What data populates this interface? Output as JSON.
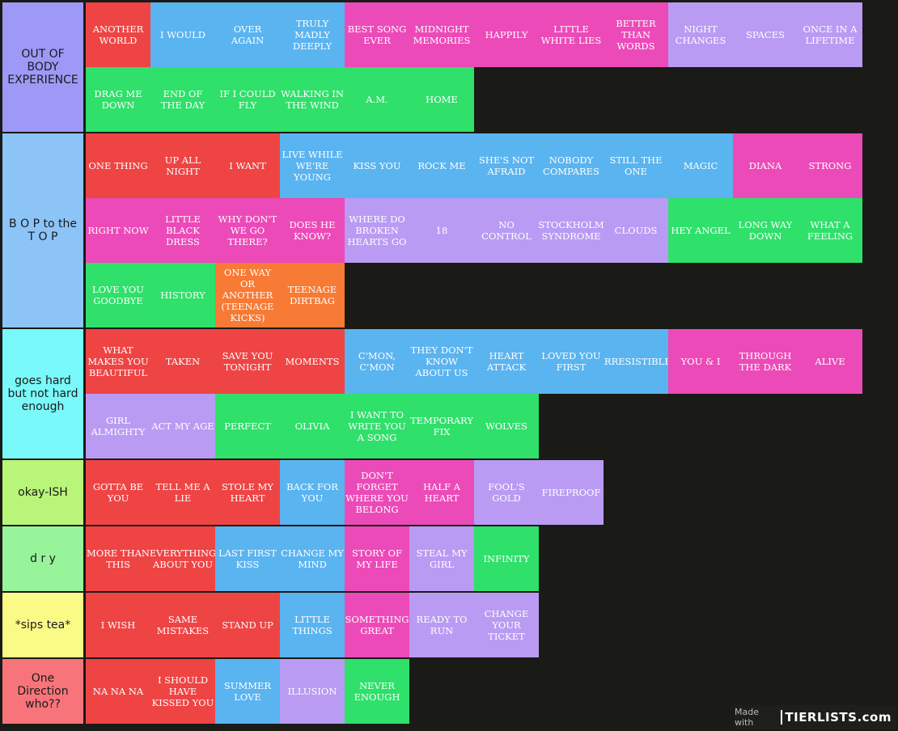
{
  "colors": {
    "red": "#ef4444",
    "blue": "#5ab4f0",
    "pink": "#ec4ab8",
    "purple": "#b99bf3",
    "green": "#2fe06a",
    "orange": "#f77a35",
    "background": "#1a1a17"
  },
  "tiers": [
    {
      "label": "OUT OF BODY EXPERIENCE",
      "color": "#9e99f7",
      "items": [
        {
          "text": "ANOTHER WORLD",
          "color": "red"
        },
        {
          "text": "I WOULD",
          "color": "blue"
        },
        {
          "text": "OVER AGAIN",
          "color": "blue"
        },
        {
          "text": "TRULY MADLY DEEPLY",
          "color": "blue"
        },
        {
          "text": "BEST SONG EVER",
          "color": "pink"
        },
        {
          "text": "MIDNIGHT MEMORIES",
          "color": "pink"
        },
        {
          "text": "HAPPILY",
          "color": "pink"
        },
        {
          "text": "LITTLE WHITE LIES",
          "color": "pink"
        },
        {
          "text": "BETTER THAN WORDS",
          "color": "pink"
        },
        {
          "text": "NIGHT CHANGES",
          "color": "purple"
        },
        {
          "text": "SPACES",
          "color": "purple"
        },
        {
          "text": "ONCE IN A LIFETIME",
          "color": "purple"
        },
        {
          "text": "DRAG ME DOWN",
          "color": "green"
        },
        {
          "text": "END OF THE DAY",
          "color": "green"
        },
        {
          "text": "IF I COULD FLY",
          "color": "green"
        },
        {
          "text": "WALKING IN THE WIND",
          "color": "green"
        },
        {
          "text": "A.M.",
          "color": "green"
        },
        {
          "text": "HOME",
          "color": "green"
        }
      ]
    },
    {
      "label": "B O P to the T O P",
      "color": "#8cc4f8",
      "items": [
        {
          "text": "ONE THING",
          "color": "red"
        },
        {
          "text": "UP ALL NIGHT",
          "color": "red"
        },
        {
          "text": "I WANT",
          "color": "red"
        },
        {
          "text": "LIVE WHILE WE'RE YOUNG",
          "color": "blue"
        },
        {
          "text": "KISS YOU",
          "color": "blue"
        },
        {
          "text": "ROCK ME",
          "color": "blue"
        },
        {
          "text": "SHE'S NOT AFRAID",
          "color": "blue"
        },
        {
          "text": "NOBODY COMPARES",
          "color": "blue"
        },
        {
          "text": "STILL THE ONE",
          "color": "blue"
        },
        {
          "text": "MAGIC",
          "color": "blue"
        },
        {
          "text": "DIANA",
          "color": "pink"
        },
        {
          "text": "STRONG",
          "color": "pink"
        },
        {
          "text": "RIGHT NOW",
          "color": "pink"
        },
        {
          "text": "LITTLE BLACK DRESS",
          "color": "pink"
        },
        {
          "text": "WHY DON'T WE GO THERE?",
          "color": "pink"
        },
        {
          "text": "DOES HE KNOW?",
          "color": "pink"
        },
        {
          "text": "WHERE DO BROKEN HEARTS GO",
          "color": "purple"
        },
        {
          "text": "18",
          "color": "purple"
        },
        {
          "text": "NO CONTROL",
          "color": "purple"
        },
        {
          "text": "STOCKHOLM SYNDROME",
          "color": "purple"
        },
        {
          "text": "CLOUDS",
          "color": "purple"
        },
        {
          "text": "HEY ANGEL",
          "color": "green"
        },
        {
          "text": "LONG WAY DOWN",
          "color": "green"
        },
        {
          "text": "WHAT A FEELING",
          "color": "green"
        },
        {
          "text": "LOVE YOU GOODBYE",
          "color": "green"
        },
        {
          "text": "HISTORY",
          "color": "green"
        },
        {
          "text": "ONE WAY OR ANOTHER (TEENAGE KICKS)",
          "color": "orange"
        },
        {
          "text": "TEENAGE DIRTBAG",
          "color": "orange"
        }
      ]
    },
    {
      "label": "goes hard but not hard enough",
      "color": "#79f9f9",
      "items": [
        {
          "text": "WHAT MAKES YOU BEAUTIFUL",
          "color": "red"
        },
        {
          "text": "TAKEN",
          "color": "red"
        },
        {
          "text": "SAVE YOU TONIGHT",
          "color": "red"
        },
        {
          "text": "MOMENTS",
          "color": "red"
        },
        {
          "text": "C'MON, C'MON",
          "color": "blue"
        },
        {
          "text": "THEY DON'T KNOW ABOUT US",
          "color": "blue"
        },
        {
          "text": "HEART ATTACK",
          "color": "blue"
        },
        {
          "text": "LOVED YOU FIRST",
          "color": "blue"
        },
        {
          "text": "IRRESISTIBLE",
          "color": "blue"
        },
        {
          "text": "YOU & I",
          "color": "pink"
        },
        {
          "text": "THROUGH THE DARK",
          "color": "pink"
        },
        {
          "text": "ALIVE",
          "color": "pink"
        },
        {
          "text": "GIRL ALMIGHTY",
          "color": "purple"
        },
        {
          "text": "ACT MY AGE",
          "color": "purple"
        },
        {
          "text": "PERFECT",
          "color": "green"
        },
        {
          "text": "OLIVIA",
          "color": "green"
        },
        {
          "text": "I WANT TO WRITE YOU A SONG",
          "color": "green"
        },
        {
          "text": "TEMPORARY FIX",
          "color": "green"
        },
        {
          "text": "WOLVES",
          "color": "green"
        }
      ]
    },
    {
      "label": "okay-ISH",
      "color": "#b9f579",
      "items": [
        {
          "text": "GOTTA BE YOU",
          "color": "red"
        },
        {
          "text": "TELL ME A LIE",
          "color": "red"
        },
        {
          "text": "STOLE MY HEART",
          "color": "red"
        },
        {
          "text": "BACK FOR YOU",
          "color": "blue"
        },
        {
          "text": "DON'T FORGET WHERE YOU BELONG",
          "color": "pink"
        },
        {
          "text": "HALF A HEART",
          "color": "pink"
        },
        {
          "text": "FOOL'S GOLD",
          "color": "purple"
        },
        {
          "text": "FIREPROOF",
          "color": "purple"
        }
      ]
    },
    {
      "label": "d r y",
      "color": "#98f49b",
      "items": [
        {
          "text": "MORE THAN THIS",
          "color": "red"
        },
        {
          "text": "EVERYTHING ABOUT YOU",
          "color": "red"
        },
        {
          "text": "LAST FIRST KISS",
          "color": "blue"
        },
        {
          "text": "CHANGE MY MIND",
          "color": "blue"
        },
        {
          "text": "STORY OF MY LIFE",
          "color": "pink"
        },
        {
          "text": "STEAL MY GIRL",
          "color": "purple"
        },
        {
          "text": "INFINITY",
          "color": "green"
        }
      ]
    },
    {
      "label": "*sips tea*",
      "color": "#fafa87",
      "items": [
        {
          "text": "I WISH",
          "color": "red"
        },
        {
          "text": "SAME MISTAKES",
          "color": "red"
        },
        {
          "text": "STAND UP",
          "color": "red"
        },
        {
          "text": "LITTLE THINGS",
          "color": "blue"
        },
        {
          "text": "SOMETHING GREAT",
          "color": "pink"
        },
        {
          "text": "READY TO RUN",
          "color": "purple"
        },
        {
          "text": "CHANGE YOUR TICKET",
          "color": "purple"
        }
      ]
    },
    {
      "label": "One Direction who??",
      "color": "#f7757a",
      "items": [
        {
          "text": "NA NA NA",
          "color": "red"
        },
        {
          "text": "I SHOULD HAVE KISSED YOU",
          "color": "red"
        },
        {
          "text": "SUMMER LOVE",
          "color": "blue"
        },
        {
          "text": "ILLUSION",
          "color": "purple"
        },
        {
          "text": "NEVER ENOUGH",
          "color": "green"
        }
      ]
    }
  ],
  "watermark": {
    "made_with": "Made with",
    "brand": "TIERLISTS.com"
  }
}
